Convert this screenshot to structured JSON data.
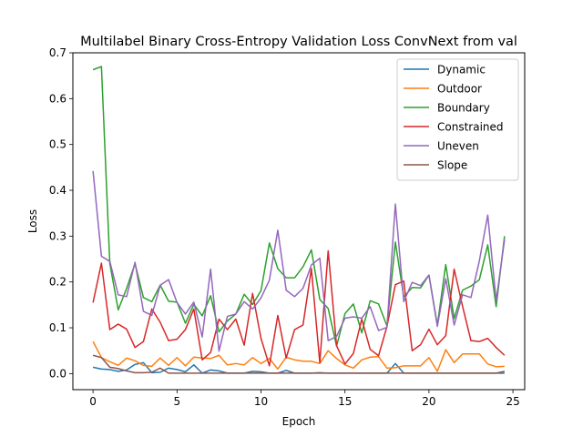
{
  "chart_data": {
    "type": "line",
    "title": "Multilabel Binary Cross-Entropy Validation Loss ConvNext from val",
    "xlabel": "Epoch",
    "ylabel": "Loss",
    "xlim": [
      -1.2,
      25.7
    ],
    "ylim": [
      -0.035,
      0.7
    ],
    "xticks": [
      0,
      5,
      10,
      15,
      20,
      25
    ],
    "yticks": [
      0.0,
      0.1,
      0.2,
      0.3,
      0.4,
      0.5,
      0.6,
      0.7
    ],
    "xtick_labels": [
      "0",
      "5",
      "10",
      "15",
      "20",
      "25"
    ],
    "ytick_labels": [
      "0.0",
      "0.1",
      "0.2",
      "0.3",
      "0.4",
      "0.5",
      "0.6",
      "0.7"
    ],
    "grid": false,
    "legend_position": "top-right",
    "x": [
      0,
      0.5,
      1,
      1.5,
      2,
      2.5,
      3,
      3.5,
      4,
      4.5,
      5,
      5.5,
      6,
      6.5,
      7,
      7.5,
      8,
      8.5,
      9,
      9.5,
      10,
      10.5,
      11,
      11.5,
      12,
      12.5,
      13,
      13.5,
      14,
      14.5,
      15,
      15.5,
      16,
      16.5,
      17,
      17.5,
      18,
      18.5,
      19,
      19.5,
      20,
      20.5,
      21,
      21.5,
      22,
      22.5,
      23,
      23.5,
      24,
      24.5
    ],
    "series": [
      {
        "name": "Dynamic",
        "color": "#1f77b4",
        "values": [
          0.014,
          0.01,
          0.009,
          0.005,
          0.008,
          0.02,
          0.024,
          0.002,
          0.003,
          0.012,
          0.009,
          0.004,
          0.019,
          0.001,
          0.008,
          0.006,
          0.001,
          0.001,
          0.001,
          0.005,
          0.004,
          0.001,
          0.001,
          0.007,
          0.001,
          0.001,
          0.001,
          0.002,
          0.001,
          0.001,
          0.001,
          0.001,
          0.001,
          0.001,
          0.001,
          0.001,
          0.022,
          0.001,
          0.001,
          0.001,
          0.001,
          0.001,
          0.001,
          0.001,
          0.001,
          0.001,
          0.001,
          0.001,
          0.001,
          0.001
        ]
      },
      {
        "name": "Outdoor",
        "color": "#ff7f0e",
        "values": [
          0.07,
          0.035,
          0.026,
          0.018,
          0.034,
          0.028,
          0.018,
          0.016,
          0.034,
          0.018,
          0.035,
          0.017,
          0.036,
          0.034,
          0.033,
          0.04,
          0.019,
          0.022,
          0.019,
          0.035,
          0.022,
          0.033,
          0.01,
          0.036,
          0.03,
          0.027,
          0.027,
          0.022,
          0.05,
          0.033,
          0.019,
          0.012,
          0.03,
          0.036,
          0.037,
          0.012,
          0.013,
          0.017,
          0.017,
          0.017,
          0.035,
          0.005,
          0.052,
          0.024,
          0.043,
          0.043,
          0.043,
          0.021,
          0.015,
          0.016
        ]
      },
      {
        "name": "Boundary",
        "color": "#2ca02c",
        "values": [
          0.663,
          0.67,
          0.24,
          0.139,
          0.186,
          0.24,
          0.166,
          0.157,
          0.193,
          0.158,
          0.156,
          0.11,
          0.151,
          0.126,
          0.17,
          0.091,
          0.115,
          0.13,
          0.173,
          0.151,
          0.181,
          0.285,
          0.229,
          0.209,
          0.209,
          0.233,
          0.27,
          0.162,
          0.142,
          0.06,
          0.131,
          0.152,
          0.089,
          0.159,
          0.152,
          0.104,
          0.287,
          0.167,
          0.188,
          0.187,
          0.215,
          0.106,
          0.238,
          0.12,
          0.182,
          0.191,
          0.205,
          0.281,
          0.146,
          0.3
        ]
      },
      {
        "name": "Constrained",
        "color": "#d62728",
        "values": [
          0.155,
          0.241,
          0.096,
          0.108,
          0.097,
          0.057,
          0.07,
          0.141,
          0.112,
          0.072,
          0.075,
          0.096,
          0.141,
          0.03,
          0.046,
          0.119,
          0.096,
          0.119,
          0.062,
          0.175,
          0.077,
          0.017,
          0.127,
          0.034,
          0.096,
          0.106,
          0.229,
          0.024,
          0.268,
          0.061,
          0.021,
          0.044,
          0.119,
          0.053,
          0.039,
          0.103,
          0.194,
          0.202,
          0.05,
          0.063,
          0.097,
          0.063,
          0.083,
          0.228,
          0.147,
          0.072,
          0.07,
          0.077,
          0.057,
          0.04
        ]
      },
      {
        "name": "Uneven",
        "color": "#9467bd",
        "values": [
          0.442,
          0.256,
          0.245,
          0.172,
          0.168,
          0.243,
          0.136,
          0.127,
          0.193,
          0.205,
          0.155,
          0.13,
          0.156,
          0.08,
          0.228,
          0.049,
          0.125,
          0.13,
          0.157,
          0.141,
          0.165,
          0.204,
          0.313,
          0.182,
          0.168,
          0.186,
          0.237,
          0.252,
          0.072,
          0.081,
          0.121,
          0.124,
          0.121,
          0.146,
          0.094,
          0.101,
          0.37,
          0.157,
          0.199,
          0.192,
          0.215,
          0.103,
          0.207,
          0.106,
          0.172,
          0.166,
          0.246,
          0.346,
          0.159,
          0.292
        ]
      },
      {
        "name": "Slope",
        "color": "#8c564b",
        "values": [
          0.04,
          0.035,
          0.014,
          0.011,
          0.006,
          0.002,
          0.002,
          0.003,
          0.012,
          0.001,
          0.001,
          0.001,
          0.001,
          0.001,
          0.001,
          0.001,
          0.001,
          0.001,
          0.001,
          0.001,
          0.001,
          0.001,
          0.001,
          0.001,
          0.001,
          0.001,
          0.001,
          0.001,
          0.001,
          0.001,
          0.001,
          0.001,
          0.001,
          0.001,
          0.001,
          0.001,
          0.001,
          0.001,
          0.001,
          0.001,
          0.001,
          0.001,
          0.001,
          0.001,
          0.001,
          0.001,
          0.001,
          0.001,
          0.001,
          0.005
        ]
      }
    ]
  }
}
